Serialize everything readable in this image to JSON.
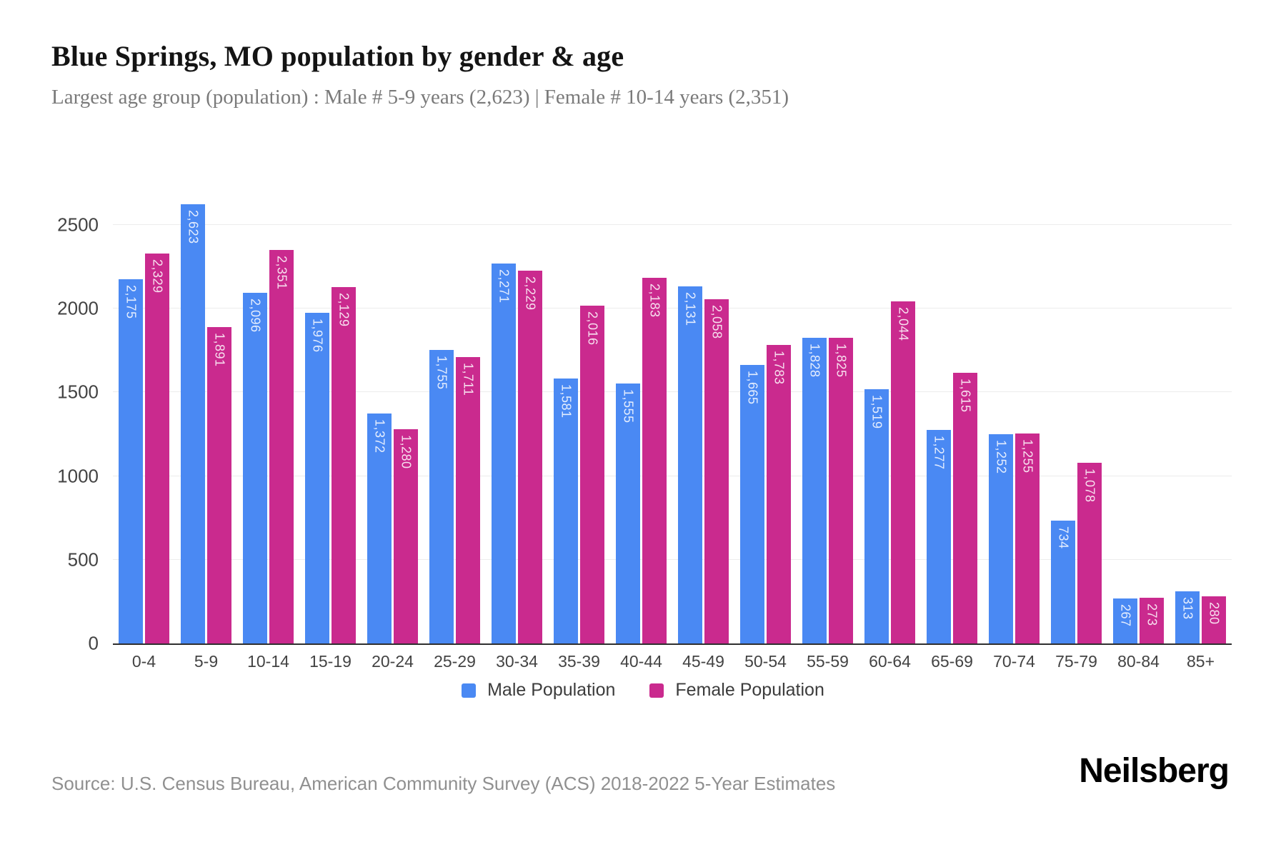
{
  "chart_data": {
    "type": "bar",
    "title": "Blue Springs, MO population by gender & age",
    "subtitle": "Largest age group (population) : Male # 5-9 years (2,623) | Female # 10-14 years (2,351)",
    "categories": [
      "0-4",
      "5-9",
      "10-14",
      "15-19",
      "20-24",
      "25-29",
      "30-34",
      "35-39",
      "40-44",
      "45-49",
      "50-54",
      "55-59",
      "60-64",
      "65-69",
      "70-74",
      "75-79",
      "80-84",
      "85+"
    ],
    "series": [
      {
        "name": "Male Population",
        "color": "#4a89f3",
        "values": [
          2175,
          2623,
          2096,
          1976,
          1372,
          1755,
          2271,
          1581,
          1555,
          2131,
          1665,
          1828,
          1519,
          1277,
          1252,
          734,
          267,
          313
        ]
      },
      {
        "name": "Female Population",
        "color": "#ca2a8e",
        "values": [
          2329,
          1891,
          2351,
          2129,
          1280,
          1711,
          2229,
          2016,
          2183,
          2058,
          1783,
          1825,
          2044,
          1615,
          1255,
          1078,
          273,
          280
        ]
      }
    ],
    "xlabel": "",
    "ylabel": "",
    "y_ticks": [
      0,
      500,
      1000,
      1500,
      2000,
      2500
    ],
    "ylim": [
      0,
      2700
    ],
    "grid": true,
    "legend_position": "bottom",
    "bar_label_color": "rgba(255,255,255,0.85)"
  },
  "footer": {
    "source": "Source: U.S. Census Bureau, American Community Survey (ACS) 2018-2022 5-Year Estimates",
    "brand": "Neilsberg"
  }
}
